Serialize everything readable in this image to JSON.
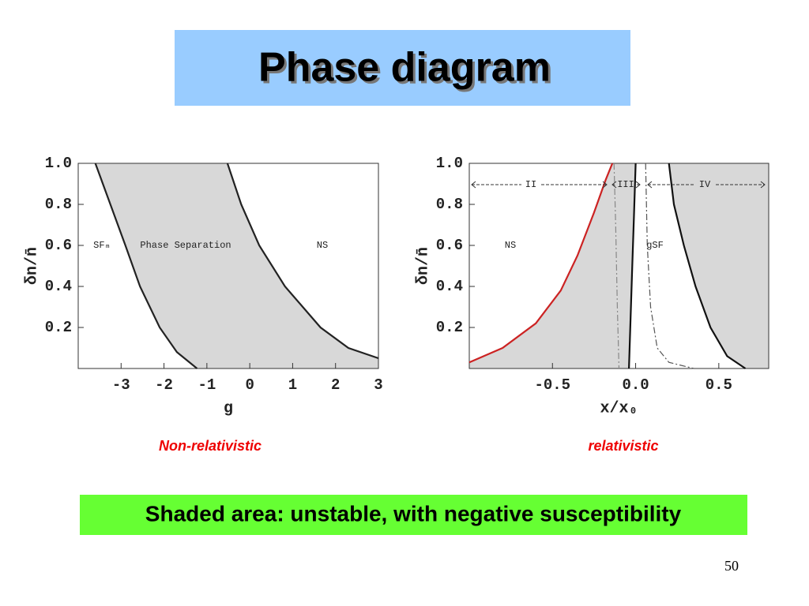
{
  "title": "Phase diagram",
  "captions": [
    "Non-relativistic",
    "relativistic"
  ],
  "note": "Shaded area: unstable, with negative susceptibility",
  "page_number": "50",
  "chart_data": [
    {
      "type": "line",
      "x_label": "g",
      "y_label": "δn/n̄",
      "xlim": [
        -4,
        3
      ],
      "ylim": [
        0,
        1
      ],
      "xticks": [
        -3,
        -2,
        -1,
        0,
        1,
        2,
        3
      ],
      "yticks": [
        0.2,
        0.4,
        0.6,
        0.8,
        {
          "value": 1,
          "label": "1.0"
        }
      ],
      "annotations": [
        "SFₘ",
        "Phase Separation",
        "NS"
      ],
      "series": [
        {
          "color": "#222222",
          "x": [
            -3.6,
            -3.25,
            -2.9,
            -2.56,
            -2.1,
            -1.7,
            -1.23
          ],
          "values": [
            1,
            0.8,
            0.6,
            0.4,
            0.2,
            0.08,
            0
          ]
        },
        {
          "color": "#222222",
          "x": [
            -0.52,
            -0.2,
            0.22,
            0.82,
            1.65,
            2.3,
            3
          ],
          "values": [
            1,
            0.8,
            0.6,
            0.4,
            0.2,
            0.1,
            0.05
          ]
        }
      ]
    },
    {
      "type": "line",
      "x_label": "x/x₀",
      "y_label": "δn/n̄",
      "xlim": [
        -1,
        0.8
      ],
      "ylim": [
        0,
        1
      ],
      "xticks": [
        -0.5,
        {
          "value": 0,
          "label": "0.0"
        },
        0.5
      ],
      "yticks": [
        0.2,
        0.4,
        0.6,
        0.8,
        {
          "value": 1,
          "label": "1.0"
        }
      ],
      "annotations": [
        "NS",
        "gSF",
        "II",
        "III",
        "IV"
      ],
      "series": [
        {
          "color": "#cc2222",
          "x": [
            -1,
            -0.8,
            -0.6,
            -0.45,
            -0.35,
            -0.25,
            -0.18,
            -0.14
          ],
          "values": [
            0.03,
            0.1,
            0.22,
            0.38,
            0.55,
            0.76,
            0.92,
            1
          ]
        },
        {
          "color": "#111111",
          "x": [
            0,
            -0.01,
            -0.02,
            -0.03,
            -0.04
          ],
          "values": [
            1,
            0.75,
            0.5,
            0.25,
            0
          ]
        },
        {
          "color": "#111111",
          "x": [
            0.2,
            0.23,
            0.29,
            0.36,
            0.45,
            0.55,
            0.66
          ],
          "values": [
            1,
            0.8,
            0.6,
            0.4,
            0.2,
            0.06,
            0
          ]
        },
        {
          "color": "#888888",
          "dash": "dashdot",
          "x": [
            -0.13,
            -0.12,
            -0.11,
            -0.1
          ],
          "values": [
            1,
            0.7,
            0.3,
            0
          ]
        },
        {
          "color": "#555555",
          "dash": "dashdot",
          "x": [
            0.06,
            0.07,
            0.09,
            0.13,
            0.2,
            0.35
          ],
          "values": [
            1,
            0.6,
            0.3,
            0.1,
            0.03,
            0
          ]
        }
      ]
    }
  ]
}
